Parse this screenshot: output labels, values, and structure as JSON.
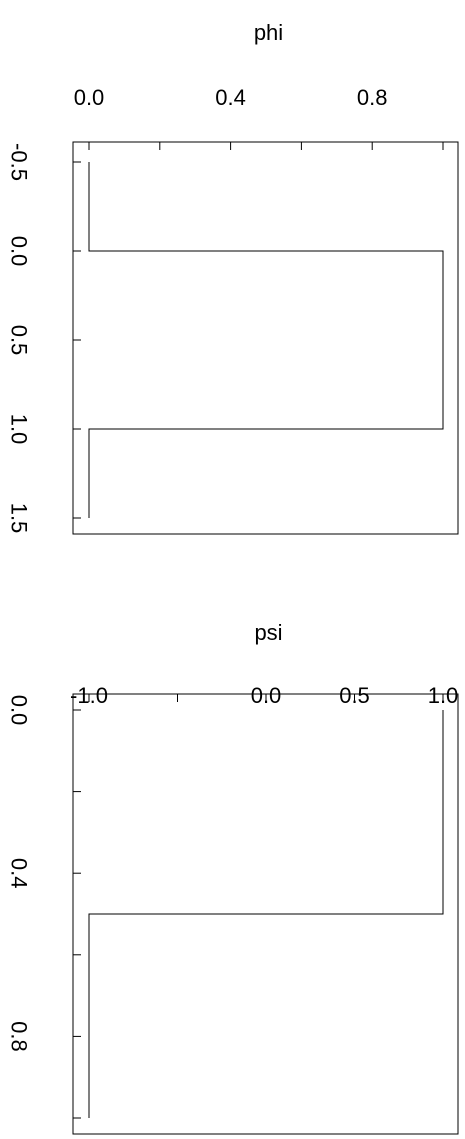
{
  "chart_data": [
    {
      "type": "line",
      "title": "phi",
      "xlim": [
        0,
        1
      ],
      "ylim": [
        -0.5,
        1.5
      ],
      "y_reversed": true,
      "x_tick_values": [
        0,
        0.2,
        0.4,
        0.6,
        0.8,
        1.0
      ],
      "x_tick_labels": [
        "0.0",
        "0.4",
        "0.8"
      ],
      "x_labeled_ticks": [
        0,
        0.4,
        0.8
      ],
      "y_tick_values": [
        -0.5,
        0,
        0.5,
        1.0,
        1.5
      ],
      "y_tick_labels": [
        "-0.5",
        "0.0",
        "0.5",
        "1.0",
        "1.5"
      ],
      "grid": false,
      "series": [
        {
          "x": [
            0,
            0,
            1,
            1,
            0,
            0
          ],
          "y": [
            -0.5,
            0,
            0,
            1,
            1,
            1.5
          ]
        }
      ]
    },
    {
      "type": "line",
      "title": "psi",
      "xlim": [
        -1,
        1
      ],
      "ylim": [
        0,
        1
      ],
      "y_reversed": true,
      "x_tick_values": [
        -1,
        -0.5,
        0,
        0.5,
        1
      ],
      "x_tick_labels": [
        "-1.0",
        "0.0",
        "0.5",
        "1.0"
      ],
      "x_labeled_ticks": [
        -1,
        0,
        0.5,
        1
      ],
      "y_tick_values": [
        0,
        0.2,
        0.4,
        0.6,
        0.8,
        1.0
      ],
      "y_tick_labels": [
        "0.0",
        "0.4",
        "0.8"
      ],
      "y_labeled_ticks": [
        0,
        0.4,
        0.8
      ],
      "grid": false,
      "series": [
        {
          "x": [
            1,
            1,
            -1,
            -1
          ],
          "y": [
            0,
            0.5,
            0.5,
            1
          ]
        }
      ]
    }
  ]
}
